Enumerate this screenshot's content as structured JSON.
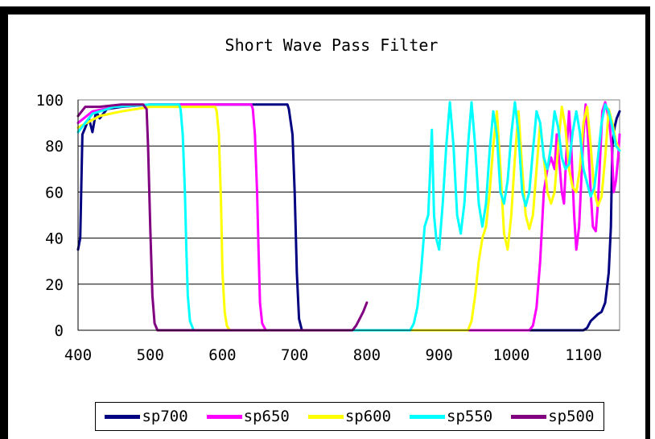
{
  "chart_data": {
    "type": "line",
    "title": "Short Wave Pass Filter",
    "xlabel": "",
    "ylabel": "",
    "xlim": [
      400,
      1150
    ],
    "ylim": [
      0,
      100
    ],
    "xticks": [
      400,
      500,
      600,
      700,
      800,
      900,
      1000,
      1100
    ],
    "yticks": [
      0,
      20,
      40,
      60,
      80,
      100
    ],
    "grid": "horizontal",
    "legend_position": "bottom",
    "series": [
      {
        "name": "sp700",
        "color": "#000080",
        "x": [
          400,
          403,
          406,
          410,
          415,
          420,
          425,
          430,
          440,
          460,
          500,
          600,
          650,
          690,
          692,
          697,
          700,
          703,
          706,
          710,
          720,
          800,
          900,
          1000,
          1100,
          1105,
          1110,
          1120,
          1125,
          1130,
          1135,
          1138,
          1140,
          1143,
          1146,
          1150
        ],
        "y": [
          35,
          40,
          85,
          88,
          92,
          86,
          95,
          92,
          96,
          97,
          98,
          98,
          98,
          98,
          96,
          85,
          60,
          25,
          5,
          0,
          0,
          0,
          0,
          0,
          0,
          1,
          4,
          7,
          8,
          12,
          25,
          45,
          80,
          88,
          92,
          95
        ]
      },
      {
        "name": "sp650",
        "color": "#FF00FF",
        "x": [
          400,
          420,
          450,
          500,
          550,
          600,
          640,
          642,
          645,
          648,
          650,
          652,
          655,
          660,
          700,
          800,
          900,
          1000,
          1025,
          1030,
          1035,
          1040,
          1045,
          1050,
          1055,
          1060,
          1063,
          1066,
          1070,
          1073,
          1076,
          1080,
          1083,
          1087,
          1090,
          1094,
          1097,
          1100,
          1103,
          1106,
          1110,
          1113,
          1117,
          1120,
          1123,
          1126,
          1130,
          1133,
          1136,
          1139,
          1142,
          1145,
          1148,
          1150
        ],
        "y": [
          90,
          95,
          97,
          98,
          98,
          98,
          98,
          96,
          85,
          60,
          35,
          12,
          3,
          0,
          0,
          0,
          0,
          0,
          0,
          2,
          10,
          30,
          60,
          70,
          75,
          70,
          85,
          75,
          60,
          55,
          75,
          95,
          80,
          50,
          35,
          45,
          65,
          85,
          98,
          85,
          60,
          45,
          43,
          55,
          75,
          95,
          99,
          95,
          90,
          80,
          60,
          65,
          75,
          85
        ]
      },
      {
        "name": "sp600",
        "color": "#FFFF00",
        "x": [
          400,
          430,
          460,
          500,
          550,
          590,
          592,
          595,
          598,
          600,
          603,
          606,
          610,
          700,
          800,
          900,
          940,
          945,
          950,
          955,
          960,
          965,
          970,
          975,
          980,
          985,
          990,
          995,
          1000,
          1005,
          1010,
          1015,
          1020,
          1025,
          1030,
          1035,
          1040,
          1045,
          1050,
          1055,
          1060,
          1065,
          1070,
          1075,
          1080,
          1085,
          1090,
          1095,
          1100,
          1105,
          1110,
          1115,
          1120,
          1125,
          1130,
          1135,
          1140,
          1145,
          1150
        ],
        "y": [
          88,
          93,
          95,
          97,
          97,
          97,
          95,
          85,
          55,
          25,
          8,
          2,
          0,
          0,
          0,
          0,
          0,
          4,
          15,
          30,
          40,
          45,
          60,
          80,
          95,
          70,
          42,
          35,
          50,
          75,
          95,
          70,
          50,
          44,
          50,
          70,
          90,
          75,
          60,
          55,
          60,
          80,
          97,
          88,
          70,
          62,
          60,
          70,
          90,
          97,
          80,
          60,
          54,
          58,
          75,
          96,
          90,
          82,
          78
        ]
      },
      {
        "name": "sp550",
        "color": "#00FFFF",
        "x": [
          400,
          420,
          450,
          500,
          540,
          542,
          545,
          548,
          550,
          552,
          555,
          560,
          600,
          700,
          800,
          860,
          865,
          870,
          875,
          880,
          885,
          890,
          893,
          896,
          900,
          905,
          910,
          915,
          920,
          925,
          930,
          935,
          940,
          945,
          950,
          955,
          960,
          965,
          970,
          975,
          980,
          985,
          990,
          995,
          1000,
          1005,
          1010,
          1015,
          1020,
          1025,
          1030,
          1035,
          1040,
          1045,
          1050,
          1055,
          1060,
          1065,
          1070,
          1075,
          1080,
          1085,
          1090,
          1095,
          1100,
          1105,
          1110,
          1115,
          1120,
          1125,
          1130,
          1135,
          1140,
          1145,
          1150
        ],
        "y": [
          86,
          94,
          97,
          98,
          98,
          96,
          85,
          60,
          35,
          15,
          4,
          0,
          0,
          0,
          0,
          0,
          3,
          10,
          25,
          45,
          50,
          87,
          50,
          40,
          35,
          55,
          80,
          99,
          80,
          50,
          42,
          55,
          80,
          99,
          80,
          55,
          45,
          55,
          78,
          95,
          85,
          60,
          55,
          65,
          85,
          99,
          85,
          60,
          54,
          60,
          78,
          95,
          90,
          75,
          70,
          80,
          95,
          88,
          75,
          70,
          72,
          86,
          95,
          86,
          70,
          64,
          58,
          62,
          75,
          90,
          98,
          95,
          88,
          80,
          78
        ]
      },
      {
        "name": "sp500",
        "color": "#800080",
        "x": [
          400,
          410,
          430,
          460,
          490,
          495,
          497,
          500,
          503,
          506,
          510,
          600,
          700,
          780,
          785,
          790,
          795,
          800
        ],
        "y": [
          93,
          97,
          97,
          98,
          98,
          96,
          80,
          45,
          15,
          3,
          0,
          0,
          0,
          0,
          2,
          5,
          8,
          12
        ]
      }
    ]
  }
}
